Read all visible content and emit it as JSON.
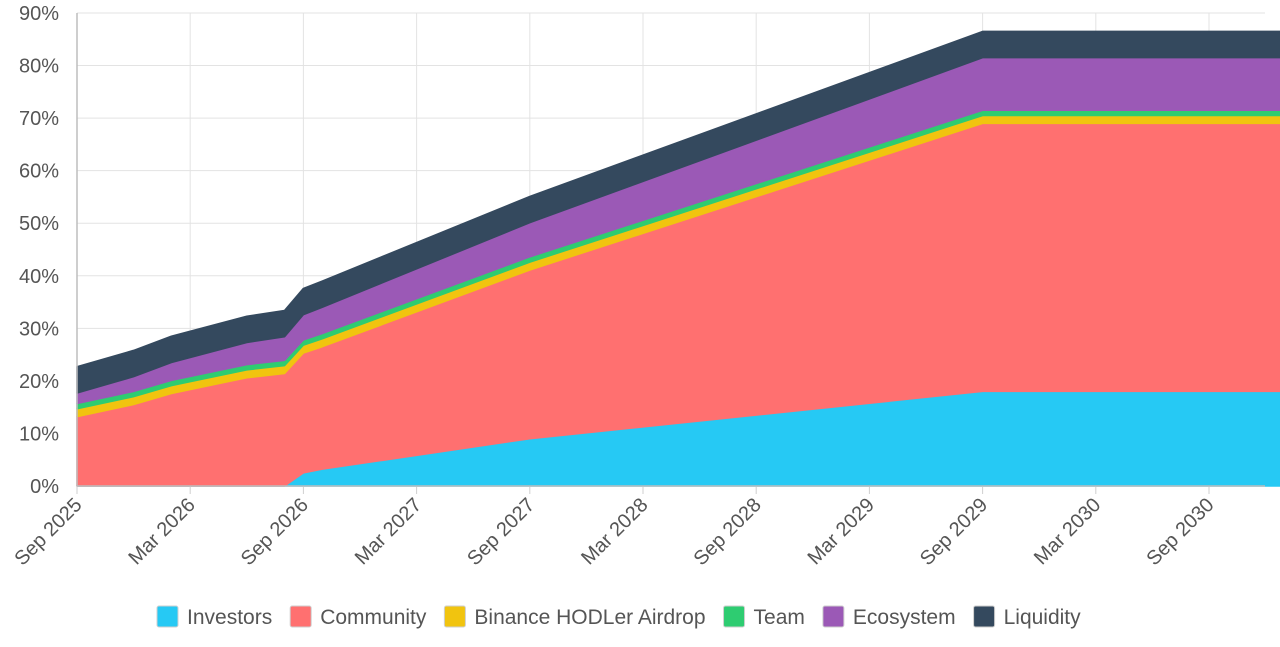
{
  "chart_data": {
    "type": "area",
    "stacked": true,
    "y_unit": "%",
    "ylim": [
      0,
      90
    ],
    "y_ticks": [
      "0%",
      "10%",
      "20%",
      "30%",
      "40%",
      "50%",
      "60%",
      "70%",
      "80%",
      "90%"
    ],
    "x_tick_labels": [
      "Sep 2025",
      "Mar 2026",
      "Sep 2026",
      "Mar 2027",
      "Sep 2027",
      "Mar 2028",
      "Sep 2028",
      "Mar 2029",
      "Sep 2029",
      "Mar 2030",
      "Sep 2030"
    ],
    "x": [
      "Sep 2025",
      "Dec 2025",
      "Feb 2026",
      "Jun 2026",
      "Aug 2026",
      "Sep 2026",
      "Oct 2026",
      "Sep 2027",
      "Sep 2029",
      "Jan 2031"
    ],
    "grid": true,
    "legend_position": "bottom",
    "series": [
      {
        "name": "Investors",
        "color": "#26c9f4",
        "values": [
          0,
          0,
          0,
          0,
          0,
          2.5,
          3.2,
          9,
          18,
          18
        ]
      },
      {
        "name": "Community",
        "color": "#ff7070",
        "values": [
          13.2,
          15.5,
          17.6,
          20.6,
          21.4,
          22.8,
          23.3,
          32.1,
          51,
          51
        ]
      },
      {
        "name": "Binance HODLer Airdrop",
        "color": "#f1c40f",
        "values": [
          1.5,
          1.5,
          1.5,
          1.5,
          1.5,
          1.5,
          1.5,
          1.5,
          1.5,
          1.5
        ]
      },
      {
        "name": "Team",
        "color": "#2ecc71",
        "values": [
          1,
          1,
          1,
          1,
          1,
          1,
          1,
          1,
          1,
          1
        ]
      },
      {
        "name": "Ecosystem",
        "color": "#9b59b6",
        "values": [
          2,
          2.8,
          3.4,
          4.2,
          4.5,
          4.8,
          5,
          6.5,
          10,
          10
        ]
      },
      {
        "name": "Liquidity",
        "color": "#34495e",
        "values": [
          5,
          5,
          5,
          5,
          5,
          5,
          5,
          5,
          5,
          5
        ]
      }
    ]
  }
}
